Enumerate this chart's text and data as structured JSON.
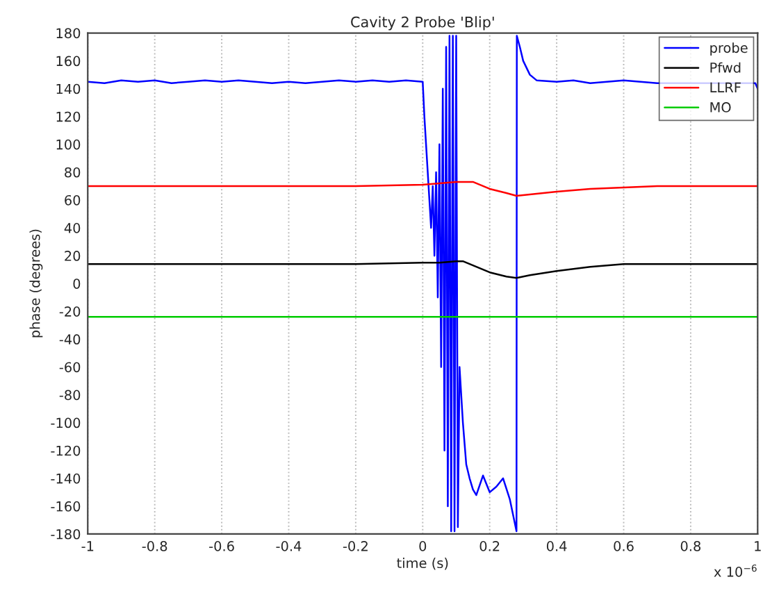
{
  "chart_data": {
    "type": "line",
    "title": "Cavity 2 Probe 'Blip'",
    "xlabel": "time (s)",
    "ylabel": "phase (degrees)",
    "annotations": [
      "x 10$^{−6}$"
    ],
    "xlim": [
      -1,
      1
    ],
    "xticks": [
      -1,
      -0.8,
      -0.6,
      -0.4,
      -0.2,
      0,
      0.2,
      0.4,
      0.6,
      0.8,
      1
    ],
    "ylim": [
      -180,
      180
    ],
    "yticks": [
      -180,
      -160,
      -140,
      -120,
      -100,
      -80,
      -60,
      -40,
      -20,
      0,
      20,
      40,
      60,
      80,
      100,
      120,
      140,
      160,
      180
    ],
    "grid": "x",
    "legend": "top right",
    "marker": "none",
    "line_style": "solid",
    "series": [
      {
        "name": "probe",
        "color": "#0000ff",
        "x": [
          -1,
          -0.95,
          -0.9,
          -0.85,
          -0.8,
          -0.75,
          -0.7,
          -0.65,
          -0.6,
          -0.55,
          -0.5,
          -0.45,
          -0.4,
          -0.35,
          -0.3,
          -0.25,
          -0.2,
          -0.15,
          -0.1,
          -0.05,
          0,
          0.005,
          0.01,
          0.015,
          0.02,
          0.025,
          0.03,
          0.035,
          0.04,
          0.045,
          0.05,
          0.055,
          0.06,
          0.065,
          0.07,
          0.075,
          0.08,
          0.085,
          0.09,
          0.095,
          0.1,
          0.105,
          0.11,
          0.12,
          0.13,
          0.14,
          0.15,
          0.16,
          0.18,
          0.2,
          0.22,
          0.24,
          0.26,
          0.28,
          0.281,
          0.29,
          0.3,
          0.32,
          0.34,
          0.4,
          0.45,
          0.5,
          0.55,
          0.6,
          0.65,
          0.7,
          0.75,
          0.8,
          0.85,
          0.9,
          0.95,
          0.993,
          1
        ],
        "values": [
          145,
          144,
          146,
          145,
          146,
          144,
          145,
          146,
          145,
          146,
          145,
          144,
          145,
          144,
          145,
          146,
          145,
          146,
          145,
          146,
          145,
          120,
          100,
          80,
          60,
          40,
          70,
          20,
          80,
          -10,
          100,
          -60,
          140,
          -120,
          170,
          -160,
          178,
          -178,
          178,
          -178,
          178,
          -175,
          -60,
          -100,
          -130,
          -140,
          -148,
          -152,
          -138,
          -150,
          -146,
          -140,
          -155,
          -178,
          178,
          170,
          160,
          150,
          146,
          145,
          146,
          144,
          145,
          146,
          145,
          144,
          null,
          null,
          null,
          null,
          null,
          144,
          140
        ]
      },
      {
        "name": "Pfwd",
        "color": "#000000",
        "x": [
          -1,
          -0.8,
          -0.6,
          -0.4,
          -0.2,
          0,
          0.05,
          0.1,
          0.12,
          0.15,
          0.2,
          0.25,
          0.28,
          0.32,
          0.4,
          0.5,
          0.6,
          0.7,
          0.8,
          0.9,
          1
        ],
        "values": [
          14,
          14,
          14,
          14,
          14,
          15,
          15,
          16,
          16,
          13,
          8,
          5,
          4,
          6,
          9,
          12,
          14,
          14,
          14,
          14,
          14
        ]
      },
      {
        "name": "LLRF",
        "color": "#ff0000",
        "x": [
          -1,
          -0.8,
          -0.6,
          -0.4,
          -0.2,
          0,
          0.05,
          0.1,
          0.15,
          0.2,
          0.25,
          0.28,
          0.32,
          0.4,
          0.5,
          0.6,
          0.7,
          0.8,
          0.9,
          1
        ],
        "values": [
          70,
          70,
          70,
          70,
          70,
          71,
          72,
          73,
          73,
          68,
          65,
          63,
          64,
          66,
          68,
          69,
          70,
          70,
          70,
          70
        ]
      },
      {
        "name": "MO",
        "color": "#00cc00",
        "x": [
          -1,
          -0.5,
          0,
          0.5,
          1
        ],
        "values": [
          -24,
          -24,
          -24,
          -24,
          -24
        ]
      }
    ]
  }
}
